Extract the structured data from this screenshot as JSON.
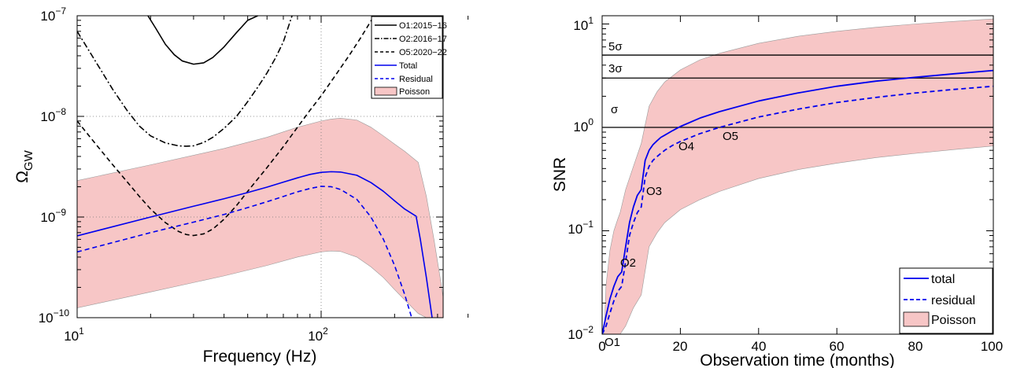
{
  "chart_data": [
    {
      "type": "line",
      "xlabel": "Frequency (Hz)",
      "ylabel_base": "Ω",
      "ylabel_sub": "GW",
      "xscale": "log",
      "yscale": "log",
      "xlim": [
        10,
        400
      ],
      "ylim": [
        1e-10,
        1e-07
      ],
      "grid": "dotted at decades",
      "legend_position": "top-right",
      "x_ticks": [
        {
          "value": 10,
          "base": "10",
          "exp": "1"
        },
        {
          "value": 100,
          "base": "10",
          "exp": "2"
        }
      ],
      "y_ticks": [
        {
          "value": 1e-10,
          "base": "10",
          "exp": "−10"
        },
        {
          "value": 1e-09,
          "base": "10",
          "exp": "−9"
        },
        {
          "value": 1e-08,
          "base": "10",
          "exp": "−8"
        },
        {
          "value": 1e-07,
          "base": "10",
          "exp": "−7"
        }
      ],
      "series": [
        {
          "name": "O1:2015−16",
          "style": "solid",
          "color": "#000000",
          "x": [
            19.5,
            21,
            23,
            25,
            27,
            30,
            33,
            36,
            40,
            45,
            50,
            55
          ],
          "y": [
            1e-07,
            7.5e-08,
            5.2e-08,
            4.1e-08,
            3.55e-08,
            3.3e-08,
            3.4e-08,
            3.85e-08,
            4.9e-08,
            6.8e-08,
            9e-08,
            1e-07
          ]
        },
        {
          "name": "O2:2016−17",
          "style": "dashdot",
          "color": "#000000",
          "x": [
            10,
            12,
            14,
            16,
            18,
            20,
            23,
            26,
            28,
            30,
            33,
            36,
            40,
            45,
            50,
            55,
            60,
            65,
            70,
            76
          ],
          "y": [
            7e-08,
            3.4e-08,
            1.85e-08,
            1.15e-08,
            8e-09,
            6.4e-09,
            5.45e-09,
            5.1e-09,
            5.05e-09,
            5.1e-09,
            5.5e-09,
            6.2e-09,
            7.6e-09,
            1e-08,
            1.4e-08,
            1.95e-08,
            2.7e-08,
            3.8e-08,
            5.5e-08,
            1e-07
          ]
        },
        {
          "name": "O5:2020−22",
          "style": "dashed",
          "color": "#000000",
          "x": [
            10,
            12,
            14,
            16,
            18,
            20,
            23,
            26,
            28,
            30,
            33,
            36,
            40,
            45,
            50,
            60,
            70,
            80,
            90,
            100,
            115,
            130,
            145,
            165
          ],
          "y": [
            9e-09,
            5.2e-09,
            3.3e-09,
            2.25e-09,
            1.6e-09,
            1.2e-09,
            8.8e-10,
            7.2e-10,
            6.7e-10,
            6.55e-10,
            6.8e-10,
            7.6e-10,
            9.5e-10,
            1.3e-09,
            1.8e-09,
            3.1e-09,
            5e-09,
            7.8e-09,
            1.15e-08,
            1.6e-08,
            2.6e-08,
            4e-08,
            6e-08,
            1e-07
          ]
        },
        {
          "name": "Total",
          "style": "solid",
          "color": "#0000ee",
          "x": [
            10,
            20,
            30,
            40,
            50,
            60,
            70,
            80,
            90,
            100,
            110,
            120,
            140,
            160,
            180,
            200,
            220,
            245,
            255,
            270,
            285
          ],
          "y": [
            6.5e-10,
            1e-09,
            1.28e-09,
            1.52e-09,
            1.75e-09,
            1.98e-09,
            2.22e-09,
            2.45e-09,
            2.65e-09,
            2.78e-09,
            2.82e-09,
            2.8e-09,
            2.6e-09,
            2.2e-09,
            1.8e-09,
            1.45e-09,
            1.2e-09,
            1.02e-09,
            6e-10,
            2.5e-10,
            1e-10
          ]
        },
        {
          "name": "Residual",
          "style": "dashed",
          "color": "#0000ee",
          "x": [
            10,
            20,
            30,
            40,
            50,
            60,
            70,
            80,
            90,
            100,
            110,
            120,
            140,
            160,
            180,
            200,
            220,
            235
          ],
          "y": [
            4.5e-10,
            7e-10,
            8.9e-10,
            1.06e-09,
            1.24e-09,
            1.42e-09,
            1.6e-09,
            1.78e-09,
            1.92e-09,
            2.02e-09,
            2e-09,
            1.88e-09,
            1.5e-09,
            1e-09,
            6e-10,
            3.3e-10,
            1.7e-10,
            1e-10
          ]
        }
      ],
      "band": {
        "name": "Poisson",
        "color": "#f7c6c6",
        "x": [
          10,
          20,
          40,
          60,
          80,
          100,
          110,
          120,
          140,
          160,
          180,
          200,
          220,
          250,
          270,
          290,
          310,
          325
        ],
        "upper": [
          2.3e-09,
          3.3e-09,
          4.8e-09,
          6.2e-09,
          7.8e-09,
          9e-09,
          9.4e-09,
          9.6e-09,
          9.2e-09,
          7.8e-09,
          6.4e-09,
          5.3e-09,
          4.5e-09,
          3.5e-09,
          1.6e-09,
          6e-10,
          2.2e-10,
          1e-10
        ],
        "lower": [
          1.25e-10,
          1.8e-10,
          2.6e-10,
          3.3e-10,
          4e-10,
          4.5e-10,
          4.6e-10,
          4.55e-10,
          4e-10,
          3.2e-10,
          2.5e-10,
          1.9e-10,
          1.5e-10,
          1.1e-10,
          1e-10,
          1e-10,
          1e-10,
          1e-10
        ]
      }
    },
    {
      "type": "line",
      "xlabel": "Observation time (months)",
      "ylabel": "SNR",
      "xscale": "linear",
      "yscale": "log",
      "xlim": [
        0,
        100
      ],
      "ylim": [
        0.01,
        12
      ],
      "legend_position": "bottom-right",
      "x_ticks": [
        {
          "value": 0,
          "label": "0"
        },
        {
          "value": 20,
          "label": "20"
        },
        {
          "value": 40,
          "label": "40"
        },
        {
          "value": 60,
          "label": "60"
        },
        {
          "value": 80,
          "label": "80"
        },
        {
          "value": 100,
          "label": "100"
        }
      ],
      "y_ticks": [
        {
          "value": 0.01,
          "base": "10",
          "exp": "−2"
        },
        {
          "value": 0.1,
          "base": "10",
          "exp": "−1"
        },
        {
          "value": 1,
          "base": "10",
          "exp": "0"
        },
        {
          "value": 10,
          "base": "10",
          "exp": "1"
        }
      ],
      "hlines": [
        {
          "value": 1,
          "label": "σ"
        },
        {
          "value": 3,
          "label": "3σ"
        },
        {
          "value": 5,
          "label": "5σ"
        }
      ],
      "annotations": [
        {
          "text": "O1",
          "x": 0.5,
          "y": 0.0112
        },
        {
          "text": "O2",
          "x": 4.6,
          "y": 0.031
        },
        {
          "text": "O3",
          "x": 11.5,
          "y": 0.23
        },
        {
          "text": "O4",
          "x": 20.3,
          "y": 0.62
        },
        {
          "text": "O5",
          "x": 31.5,
          "y": 0.78
        }
      ],
      "series": [
        {
          "name": "total",
          "style": "solid",
          "color": "#0000ee",
          "x": [
            0,
            1,
            2,
            3,
            4,
            5,
            6,
            7,
            8,
            9,
            10,
            11,
            12,
            13,
            14,
            15,
            16,
            18,
            20,
            25,
            30,
            40,
            50,
            60,
            70,
            80,
            90,
            100
          ],
          "y": [
            0.01,
            0.015,
            0.022,
            0.029,
            0.036,
            0.04,
            0.07,
            0.12,
            0.17,
            0.22,
            0.25,
            0.48,
            0.6,
            0.68,
            0.74,
            0.8,
            0.84,
            0.93,
            1.02,
            1.23,
            1.42,
            1.8,
            2.15,
            2.5,
            2.8,
            3.05,
            3.3,
            3.55
          ]
        },
        {
          "name": "residual",
          "style": "dashed",
          "color": "#0000ee",
          "x": [
            0,
            1,
            2,
            3,
            4,
            5,
            6,
            7,
            8,
            9,
            10,
            11,
            12,
            13,
            14,
            15,
            16,
            18,
            20,
            25,
            30,
            40,
            50,
            60,
            70,
            80,
            90,
            100
          ],
          "y": [
            0.01,
            0.012,
            0.016,
            0.021,
            0.026,
            0.029,
            0.05,
            0.09,
            0.12,
            0.15,
            0.17,
            0.33,
            0.42,
            0.48,
            0.52,
            0.56,
            0.6,
            0.67,
            0.73,
            0.87,
            1.0,
            1.26,
            1.5,
            1.74,
            1.95,
            2.15,
            2.33,
            2.5
          ]
        }
      ],
      "band": {
        "name": "Poisson",
        "color": "#f7c6c6",
        "x": [
          0.5,
          1,
          2,
          3,
          4,
          4.6,
          6,
          8,
          10,
          12,
          14,
          16,
          20,
          25,
          30,
          40,
          50,
          60,
          70,
          80,
          90,
          100
        ],
        "upper": [
          0.01,
          0.03,
          0.065,
          0.1,
          0.13,
          0.15,
          0.25,
          0.42,
          0.7,
          1.6,
          2.2,
          2.75,
          3.6,
          4.5,
          5.2,
          6.5,
          7.6,
          8.5,
          9.3,
          10.0,
          10.6,
          11.2
        ],
        "lower": [
          0.01,
          0.01,
          0.01,
          0.01,
          0.01,
          0.01,
          0.012,
          0.018,
          0.024,
          0.07,
          0.095,
          0.12,
          0.16,
          0.2,
          0.24,
          0.32,
          0.39,
          0.45,
          0.51,
          0.56,
          0.61,
          0.66
        ]
      }
    }
  ]
}
